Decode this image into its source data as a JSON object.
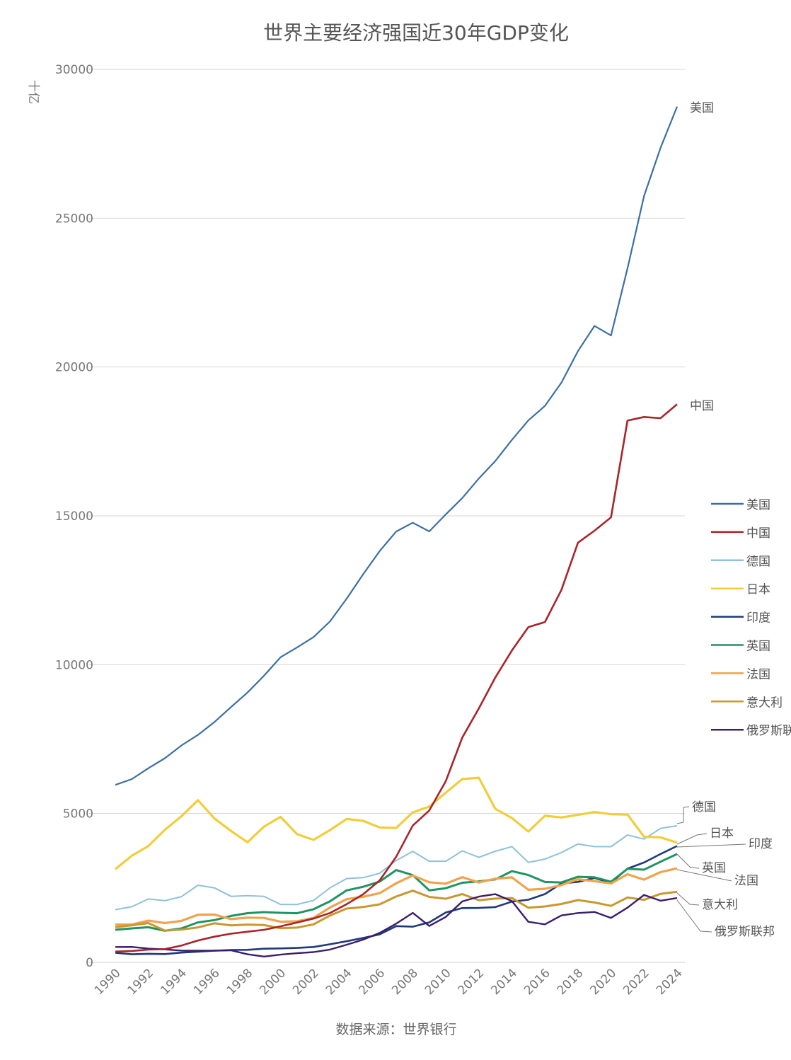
{
  "chart_data": {
    "type": "line",
    "title": "世界主要经济强国近30年GDP变化",
    "ylabel": "十亿",
    "source": "数据来源：世界银行",
    "ylim": [
      0,
      30000
    ],
    "yticks": [
      0,
      5000,
      10000,
      15000,
      20000,
      25000,
      30000
    ],
    "ytick_labels": [
      "0",
      "5000",
      "10000",
      "15000",
      "20000",
      "25000",
      "30000"
    ],
    "xlim": [
      1990,
      2024
    ],
    "xtick_labels": [
      "1990",
      "1992",
      "1994",
      "1996",
      "1998",
      "2000",
      "2002",
      "2004",
      "2006",
      "2008",
      "2010",
      "2012",
      "2014",
      "2016",
      "2018",
      "2020",
      "2022",
      "2024"
    ],
    "grid": true,
    "legend": "right",
    "x": [
      1990,
      1991,
      1992,
      1993,
      1994,
      1995,
      1996,
      1997,
      1998,
      1999,
      2000,
      2001,
      2002,
      2003,
      2004,
      2005,
      2006,
      2007,
      2008,
      2009,
      2010,
      2011,
      2012,
      2013,
      2014,
      2015,
      2016,
      2017,
      2018,
      2019,
      2020,
      2021,
      2022,
      2023,
      2024
    ],
    "series": [
      {
        "name": "美国",
        "color": "#3b6fa3",
        "values": [
          5963,
          6158,
          6520,
          6859,
          7287,
          7640,
          8073,
          8578,
          9063,
          9631,
          10251,
          10582,
          10929,
          11457,
          12217,
          13039,
          13816,
          14474,
          14770,
          14478,
          15049,
          15600,
          16254,
          16843,
          17551,
          18206,
          18695,
          19477,
          20533,
          21381,
          21060,
          23315,
          25744,
          27361,
          28750
        ]
      },
      {
        "name": "中国",
        "color": "#a8242a",
        "values": [
          361,
          383,
          427,
          445,
          564,
          734,
          863,
          962,
          1029,
          1094,
          1211,
          1339,
          1471,
          1660,
          1955,
          2286,
          2752,
          3550,
          4594,
          5101,
          6087,
          7552,
          8532,
          9570,
          10476,
          11262,
          11433,
          12510,
          14100,
          14500,
          14950,
          18200,
          18320,
          18280,
          18750
        ]
      },
      {
        "name": "德国",
        "color": "#8ec1dc",
        "values": [
          1772,
          1868,
          2131,
          2071,
          2206,
          2592,
          2504,
          2219,
          2240,
          2215,
          1948,
          1945,
          2079,
          2505,
          2815,
          2846,
          2992,
          3421,
          3730,
          3398,
          3396,
          3744,
          3527,
          3733,
          3890,
          3357,
          3468,
          3690,
          3977,
          3889,
          3887,
          4278,
          4140,
          4500,
          4590
        ]
      },
      {
        "name": "日本",
        "color": "#f2cd3a",
        "values": [
          3133,
          3584,
          3909,
          4454,
          4907,
          5449,
          4833,
          4415,
          4033,
          4562,
          4888,
          4304,
          4115,
          4445,
          4815,
          4755,
          4530,
          4515,
          5038,
          5231,
          5700,
          6157,
          6203,
          5156,
          4850,
          4395,
          4923,
          4867,
          4955,
          5048,
          4978,
          4965,
          4220,
          4200,
          4020
        ]
      },
      {
        "name": "印度",
        "color": "#1e3a78",
        "values": [
          321,
          270,
          288,
          279,
          327,
          360,
          393,
          416,
          421,
          458,
          468,
          485,
          515,
          608,
          709,
          820,
          940,
          1217,
          1199,
          1342,
          1676,
          1823,
          1828,
          1857,
          2039,
          2104,
          2295,
          2651,
          2702,
          2836,
          2672,
          3150,
          3354,
          3640,
          3910
        ]
      },
      {
        "name": "英国",
        "color": "#1e9462",
        "values": [
          1093,
          1142,
          1179,
          1061,
          1140,
          1344,
          1419,
          1560,
          1653,
          1687,
          1665,
          1650,
          1786,
          2053,
          2417,
          2539,
          2713,
          3100,
          2930,
          2420,
          2491,
          2675,
          2720,
          2786,
          3065,
          2934,
          2700,
          2683,
          2874,
          2858,
          2707,
          3143,
          3114,
          3380,
          3640
        ]
      },
      {
        "name": "法国",
        "color": "#f0a24c",
        "values": [
          1269,
          1269,
          1401,
          1322,
          1394,
          1601,
          1605,
          1452,
          1503,
          1493,
          1365,
          1378,
          1495,
          1845,
          2124,
          2204,
          2325,
          2657,
          2918,
          2690,
          2643,
          2863,
          2683,
          2811,
          2856,
          2439,
          2472,
          2595,
          2790,
          2729,
          2647,
          2960,
          2780,
          3030,
          3160
        ]
      },
      {
        "name": "意大利",
        "color": "#c9982e",
        "values": [
          1181,
          1246,
          1320,
          1067,
          1100,
          1174,
          1313,
          1241,
          1270,
          1253,
          1146,
          1168,
          1276,
          1577,
          1806,
          1858,
          1949,
          2213,
          2408,
          2199,
          2136,
          2294,
          2087,
          2141,
          2162,
          1836,
          1877,
          1961,
          2092,
          2011,
          1897,
          2180,
          2100,
          2300,
          2370
        ]
      },
      {
        "name": "俄罗斯联邦",
        "color": "#3b1d6e",
        "values": [
          517,
          518,
          460,
          435,
          395,
          395,
          392,
          405,
          271,
          196,
          260,
          307,
          345,
          430,
          591,
          764,
          990,
          1300,
          1661,
          1223,
          1525,
          2046,
          2208,
          2292,
          2059,
          1363,
          1277,
          1575,
          1657,
          1693,
          1493,
          1837,
          2266,
          2070,
          2160
        ]
      }
    ]
  }
}
